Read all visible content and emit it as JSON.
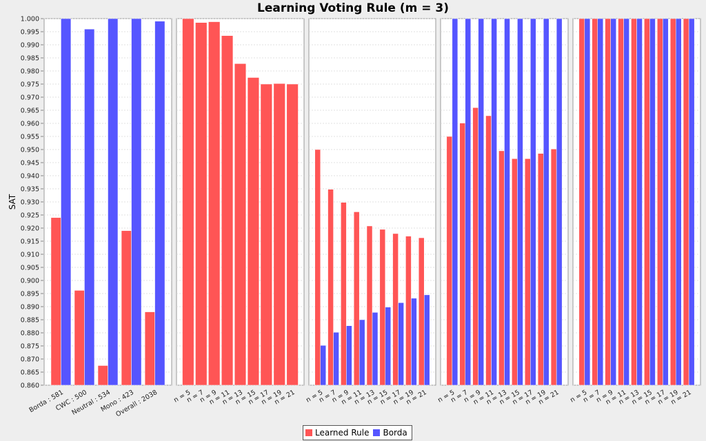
{
  "chart_data": {
    "type": "bar",
    "title": "Learning Voting Rule (m = 3)",
    "ylabel": "SAT",
    "ylim": [
      0.86,
      1.0
    ],
    "yticks": [
      "0.860",
      "0.865",
      "0.870",
      "0.875",
      "0.880",
      "0.885",
      "0.890",
      "0.895",
      "0.900",
      "0.905",
      "0.910",
      "0.915",
      "0.920",
      "0.925",
      "0.930",
      "0.935",
      "0.940",
      "0.945",
      "0.950",
      "0.955",
      "0.960",
      "0.965",
      "0.970",
      "0.975",
      "0.980",
      "0.985",
      "0.990",
      "0.995",
      "1.000"
    ],
    "colors": {
      "Learned Rule": "#ff5555",
      "Borda": "#5555ff"
    },
    "legend": [
      {
        "name": "Learned Rule",
        "color": "#ff5555"
      },
      {
        "name": "Borda",
        "color": "#5555ff"
      }
    ],
    "panels": [
      {
        "categories": [
          "Borda : 581",
          "CWC : 500",
          "Neutral : 534",
          "Mono : 423",
          "Overall : 2038"
        ],
        "series": [
          {
            "name": "Learned Rule",
            "values": [
              0.924,
              0.8962,
              0.8675,
              0.919,
              0.888
            ]
          },
          {
            "name": "Borda",
            "values": [
              1.0,
              0.996,
              1.0,
              1.0,
              0.999
            ]
          }
        ]
      },
      {
        "categories": [
          "n = 5",
          "n = 7",
          "n = 9",
          "n = 11",
          "n = 13",
          "n = 15",
          "n = 17",
          "n = 19",
          "n = 21"
        ],
        "series": [
          {
            "name": "Learned Rule",
            "values": [
              1.0,
              0.9985,
              0.9988,
              0.9935,
              0.9828,
              0.9775,
              0.975,
              0.9752,
              0.975
            ]
          }
        ]
      },
      {
        "categories": [
          "n = 5",
          "n = 7",
          "n = 9",
          "n = 11",
          "n = 13",
          "n = 15",
          "n = 17",
          "n = 19",
          "n = 21"
        ],
        "series": [
          {
            "name": "Learned Rule",
            "values": [
              0.95,
              0.9348,
              0.9298,
              0.9262,
              0.9208,
              0.9195,
              0.9179,
              0.9169,
              0.9163
            ]
          },
          {
            "name": "Borda",
            "values": [
              0.8752,
              0.8802,
              0.8827,
              0.885,
              0.8878,
              0.8898,
              0.8915,
              0.8932,
              0.8945
            ]
          }
        ]
      },
      {
        "categories": [
          "n = 5",
          "n = 7",
          "n = 9",
          "n = 11",
          "n = 13",
          "n = 15",
          "n = 17",
          "n = 19",
          "n = 21"
        ],
        "series": [
          {
            "name": "Learned Rule",
            "values": [
              0.955,
              0.9601,
              0.966,
              0.9629,
              0.9495,
              0.9465,
              0.9465,
              0.9485,
              0.9502
            ]
          },
          {
            "name": "Borda",
            "values": [
              1.0,
              1.0,
              1.0,
              1.0,
              1.0,
              1.0,
              1.0,
              1.0,
              1.0
            ]
          }
        ]
      },
      {
        "categories": [
          "n = 5",
          "n = 7",
          "n = 9",
          "n = 11",
          "n = 13",
          "n = 15",
          "n = 17",
          "n = 19",
          "n = 21"
        ],
        "series": [
          {
            "name": "Learned Rule",
            "values": [
              1.0,
              1.0,
              1.0,
              1.0,
              1.0,
              1.0,
              1.0,
              1.0,
              1.0
            ]
          },
          {
            "name": "Borda",
            "values": [
              1.0,
              1.0,
              1.0,
              1.0,
              1.0,
              1.0,
              1.0,
              1.0,
              1.0
            ]
          }
        ]
      }
    ]
  }
}
